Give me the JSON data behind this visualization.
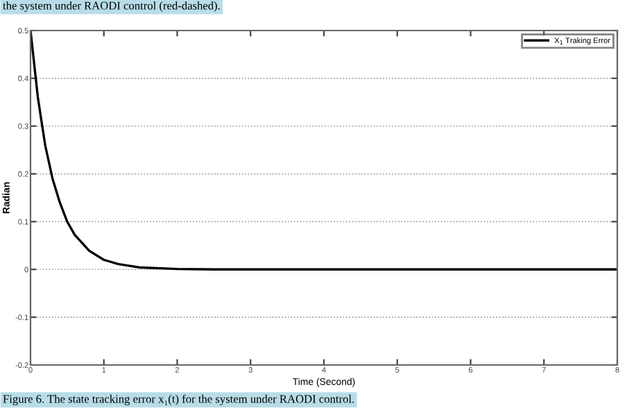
{
  "chart_data": {
    "type": "line",
    "xlabel": "Time (Second)",
    "ylabel": "Radian",
    "x": [
      0,
      0.05,
      0.1,
      0.2,
      0.3,
      0.4,
      0.5,
      0.6,
      0.8,
      1.0,
      1.2,
      1.5,
      2,
      2.5,
      3,
      4,
      5,
      6,
      7,
      8
    ],
    "series": [
      {
        "name": "X$_{1}$ Traking Error",
        "color": "#000000",
        "values": [
          0.5,
          0.43,
          0.36,
          0.26,
          0.19,
          0.14,
          0.1,
          0.073,
          0.039,
          0.02,
          0.011,
          0.004,
          0.001,
          0,
          0,
          0,
          0,
          0,
          0,
          0
        ]
      }
    ],
    "xlim": [
      0,
      8
    ],
    "xticks": [
      0,
      1,
      2,
      3,
      4,
      5,
      6,
      7,
      8
    ],
    "ylim": [
      -0.2,
      0.5
    ],
    "yticks": [
      -0.2,
      -0.1,
      0,
      0.1,
      0.2,
      0.3,
      0.4,
      0.5
    ],
    "grid": "y",
    "legend": "top right",
    "line_style": "solid",
    "marker": "none",
    "annotations": [
      "the system under RAODI control (red-dashed).",
      "Figure 6. The state tracking error x₁(t) for the system under RAODI control."
    ]
  }
}
